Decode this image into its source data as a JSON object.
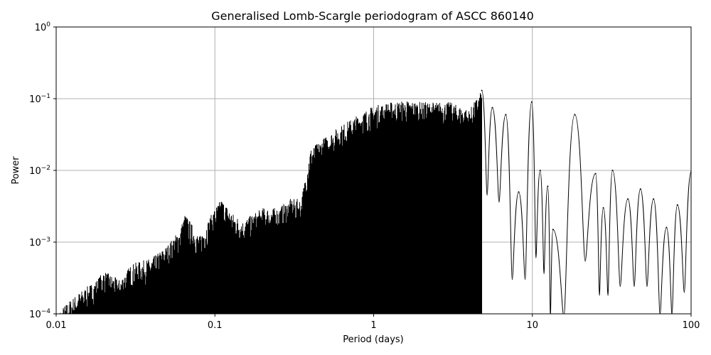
{
  "chart_data": {
    "type": "line",
    "title": "Generalised Lomb-Scargle periodogram of ASCC 860140",
    "xlabel": "Period (days)",
    "ylabel": "Power",
    "xscale": "log",
    "yscale": "log",
    "xlim": [
      0.01,
      100
    ],
    "ylim": [
      0.0001,
      1
    ],
    "grid": true,
    "x_ticks": [
      {
        "value": 0.01,
        "label": "0.01"
      },
      {
        "value": 0.1,
        "label": "0.1"
      },
      {
        "value": 1,
        "label": "1"
      },
      {
        "value": 10,
        "label": "10"
      },
      {
        "value": 100,
        "label": "100"
      }
    ],
    "y_ticks": [
      {
        "value": 0.0001,
        "base": "10",
        "exp": "−4"
      },
      {
        "value": 0.001,
        "base": "10",
        "exp": "−3"
      },
      {
        "value": 0.01,
        "base": "10",
        "exp": "−2"
      },
      {
        "value": 0.1,
        "base": "10",
        "exp": "−1"
      },
      {
        "value": 1,
        "base": "10",
        "exp": "0"
      }
    ],
    "line_color": "#000000",
    "envelope": {
      "period": [
        0.01,
        0.012,
        0.014,
        0.018,
        0.02,
        0.025,
        0.03,
        0.04,
        0.05,
        0.06,
        0.065,
        0.08,
        0.1,
        0.11,
        0.13,
        0.15,
        0.2,
        0.25,
        0.3,
        0.35,
        0.4,
        0.5,
        0.6,
        0.8,
        1.0,
        1.3,
        1.6,
        2.0,
        2.5,
        3.0,
        4.0,
        4.8
      ],
      "peak_power": [
        0.0001,
        0.00015,
        0.0002,
        0.0003,
        0.0004,
        0.0003,
        0.0005,
        0.0006,
        0.0009,
        0.0015,
        0.0025,
        0.0012,
        0.003,
        0.004,
        0.0025,
        0.002,
        0.003,
        0.003,
        0.004,
        0.004,
        0.02,
        0.03,
        0.04,
        0.06,
        0.08,
        0.09,
        0.095,
        0.09,
        0.09,
        0.09,
        0.07,
        0.13
      ]
    },
    "resolved_peaks": [
      {
        "period": 4.8,
        "power": 0.13
      },
      {
        "period": 5.6,
        "power": 0.075
      },
      {
        "period": 6.8,
        "power": 0.06
      },
      {
        "period": 8.2,
        "power": 0.005
      },
      {
        "period": 9.9,
        "power": 0.09
      },
      {
        "period": 11.2,
        "power": 0.01
      },
      {
        "period": 12.5,
        "power": 0.006
      },
      {
        "period": 13.5,
        "power": 0.0015
      },
      {
        "period": 18.5,
        "power": 0.06
      },
      {
        "period": 25,
        "power": 0.009
      },
      {
        "period": 28,
        "power": 0.003
      },
      {
        "period": 32,
        "power": 0.01
      },
      {
        "period": 40,
        "power": 0.004
      },
      {
        "period": 48,
        "power": 0.0055
      },
      {
        "period": 58,
        "power": 0.004
      },
      {
        "period": 70,
        "power": 0.0016
      },
      {
        "period": 82,
        "power": 0.0033
      },
      {
        "period": 100,
        "power": 0.0095
      }
    ]
  }
}
